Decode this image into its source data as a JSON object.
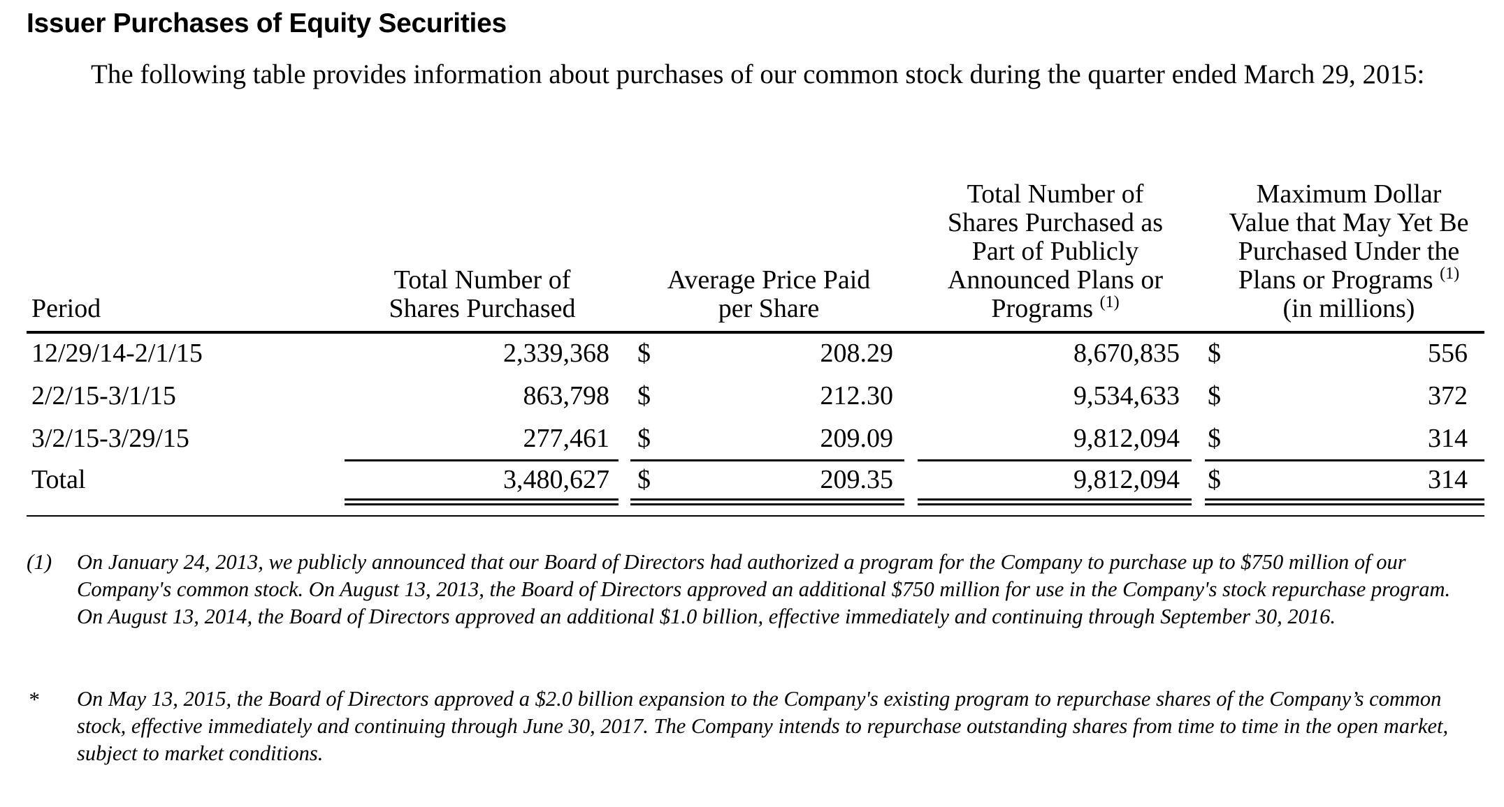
{
  "title": "Issuer Purchases of Equity Securities",
  "intro": "The following table provides information about purchases of our common stock during the quarter ended March 29, 2015:",
  "table": {
    "headers": {
      "period": "Period",
      "total_shares_line1": "Total Number of",
      "total_shares_line2": "Shares Purchased",
      "avg_price_line1": "Average Price Paid",
      "avg_price_line2": "per Share",
      "plan_shares_line1": "Total Number of",
      "plan_shares_line2": "Shares Purchased as",
      "plan_shares_line3": "Part of Publicly",
      "plan_shares_line4": "Announced Plans or",
      "plan_shares_line5": "Programs",
      "plan_shares_note": "(1)",
      "max_value_line1": "Maximum Dollar",
      "max_value_line2": "Value that May Yet Be",
      "max_value_line3": "Purchased Under the",
      "max_value_line4": "Plans or Programs",
      "max_value_note": "(1)",
      "max_value_line5": "(in millions)"
    },
    "rows": [
      {
        "period": "12/29/14-2/1/15",
        "total_shares": "2,339,368",
        "cur1": "$",
        "avg_price": "208.29",
        "plan_shares": "8,670,835",
        "cur2": "$",
        "max_value": "556"
      },
      {
        "period": "2/2/15-3/1/15",
        "total_shares": "863,798",
        "cur1": "$",
        "avg_price": "212.30",
        "plan_shares": "9,534,633",
        "cur2": "$",
        "max_value": "372"
      },
      {
        "period": "3/2/15-3/29/15",
        "total_shares": "277,461",
        "cur1": "$",
        "avg_price": "209.09",
        "plan_shares": "9,812,094",
        "cur2": "$",
        "max_value": "314"
      }
    ],
    "total": {
      "period": "Total",
      "total_shares": "3,480,627",
      "cur1": "$",
      "avg_price": "209.35",
      "plan_shares": "9,812,094",
      "cur2": "$",
      "max_value": "314"
    }
  },
  "footnotes": [
    {
      "marker": "(1)",
      "text": "On January 24, 2013, we publicly announced that our Board of Directors had authorized a program for the Company to purchase up to $750 million of our Company's common stock. On August 13, 2013, the Board of Directors approved an additional $750 million for use in the Company's stock repurchase program. On August 13, 2014, the Board of Directors approved an additional $1.0 billion, effective immediately and continuing through September 30, 2016."
    },
    {
      "marker": "*",
      "text": "On May 13, 2015, the Board of Directors approved a $2.0 billion expansion to the Company's existing program to repurchase shares of the Company’s common stock, effective immediately and continuing through June 30, 2017. The Company intends to repurchase outstanding shares from time to time in the open market, subject to market conditions."
    }
  ]
}
